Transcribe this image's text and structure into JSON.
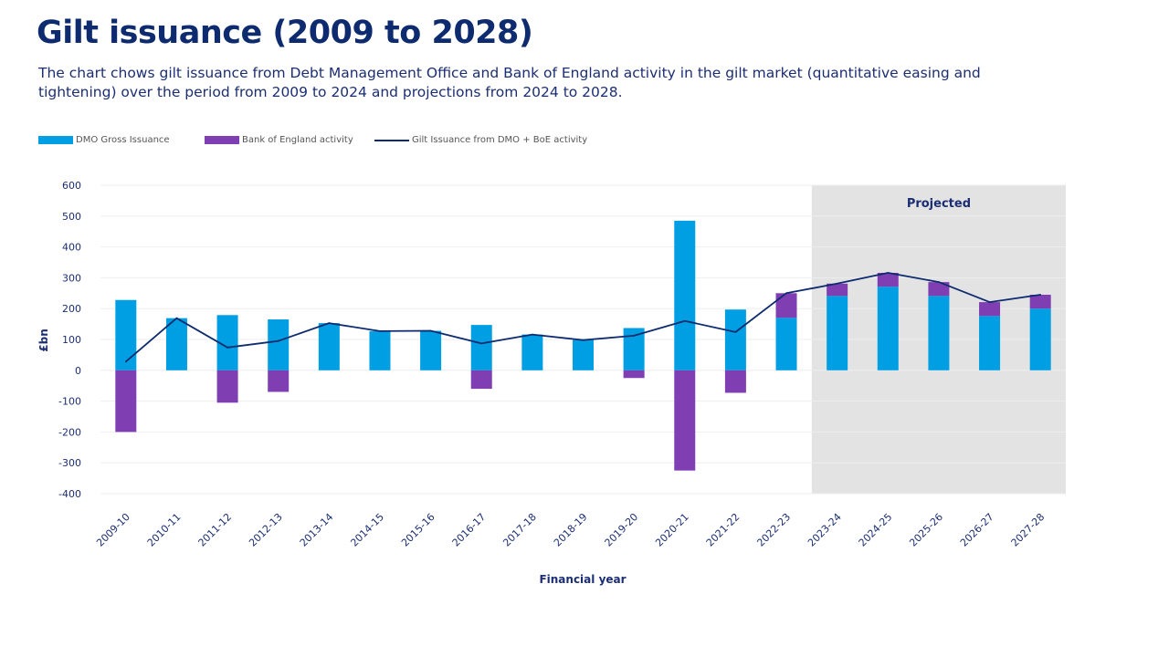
{
  "title": "Gilt issuance (2009 to 2028)",
  "subtitle": "The chart chows gilt issuance from Debt Management Office and Bank of England activity in the gilt market (quantitative easing and tightening) over the period from 2009 to 2024 and projections from 2024 to 2028.",
  "legend": {
    "dmo": "DMO Gross Issuance",
    "boe": "Bank of England activity",
    "line": "Gilt Issuance from DMO + BoE activity"
  },
  "colors": {
    "dmo": "#009fe3",
    "boe": "#7f3fb3",
    "line": "#0d2b6e",
    "projected_bg": "#e3e3e3",
    "text": "#1b2e73"
  },
  "chart_data": {
    "type": "bar",
    "stacked": true,
    "categories": [
      "2009-10",
      "2010-11",
      "2011-12",
      "2012-13",
      "2013-14",
      "2014-15",
      "2015-16",
      "2016-17",
      "2017-18",
      "2018-19",
      "2019-20",
      "2020-21",
      "2021-22",
      "2022-23",
      "2023-24",
      "2024-25",
      "2025-26",
      "2026-27",
      "2027-28"
    ],
    "series": [
      {
        "name": "DMO Gross Issuance",
        "kind": "bar",
        "values": [
          228,
          169,
          179,
          165,
          153,
          127,
          128,
          147,
          116,
          98,
          137,
          485,
          197,
          170,
          241,
          271,
          241,
          176,
          200
        ]
      },
      {
        "name": "Bank of England activity",
        "kind": "bar",
        "values": [
          -200,
          0,
          -105,
          -70,
          0,
          0,
          0,
          -60,
          0,
          0,
          -25,
          -325,
          -73,
          80,
          40,
          45,
          45,
          45,
          45
        ]
      },
      {
        "name": "Gilt Issuance from DMO + BoE activity",
        "kind": "line",
        "values": [
          28,
          169,
          74,
          95,
          153,
          127,
          128,
          87,
          116,
          98,
          112,
          160,
          124,
          250,
          281,
          316,
          286,
          221,
          245
        ]
      }
    ],
    "ylabel": "£bn",
    "xlabel": "Financial year",
    "ylim": [
      -400,
      600
    ],
    "yticks": [
      600,
      500,
      400,
      300,
      200,
      100,
      0,
      -100,
      -200,
      -300,
      -400
    ],
    "grid": true,
    "projected": {
      "label": "Projected",
      "from": "2023-24",
      "to": "2027-28"
    },
    "legend_position": "top-left"
  }
}
